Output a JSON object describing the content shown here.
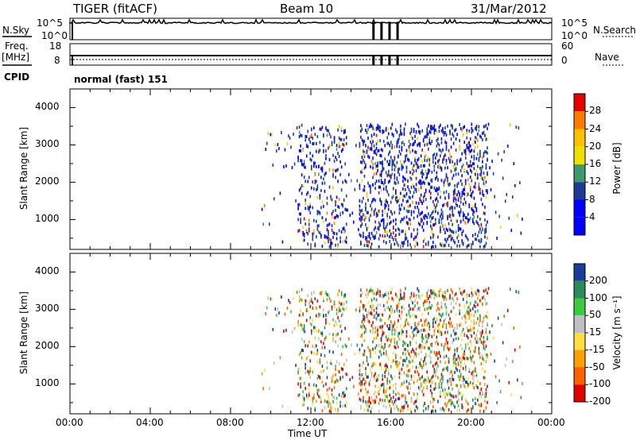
{
  "header": {
    "radar": "TIGER (fitACF)",
    "beam": "Beam 10",
    "date": "31/Mar/2012"
  },
  "top_panel": {
    "nsky_label": "N.Sky",
    "nsky_ticks": [
      "10^5",
      "10^0"
    ],
    "nsearch_label": "N.Search",
    "nsearch_ticks": [
      "10^5",
      "10^0"
    ],
    "freq_label": "Freq.",
    "freq_unit": "[MHz]",
    "freq_ticks": [
      "18",
      "8"
    ],
    "nave_label": "Nave",
    "nave_ticks": [
      "60",
      "0"
    ],
    "cpid_label": "CPID",
    "cpid_value": "normal (fast) 151"
  },
  "colorbars": {
    "power": {
      "label": "Power [dB]",
      "ticks": [
        "28",
        "24",
        "20",
        "16",
        "12",
        "8",
        "4"
      ],
      "colors": [
        "#e60000",
        "#ff7a00",
        "#ffc000",
        "#f0e000",
        "#3c9a6e",
        "#1e3c96",
        "#0000ff"
      ]
    },
    "velocity": {
      "label": "Velocity [m s⁻¹]",
      "ticks": [
        "200",
        "100",
        "50",
        "15",
        "-15",
        "-50",
        "-100",
        "-200"
      ],
      "colors": [
        "#1a3c9c",
        "#2d8a5a",
        "#40c840",
        "#c0c0c0",
        "#ffe040",
        "#ffa000",
        "#ff6000",
        "#e00000"
      ]
    }
  },
  "chart_data": [
    {
      "type": "heatmap",
      "panel": "power",
      "ylabel": "Slant Range [km]",
      "yticks": [
        "4000",
        "3000",
        "2000",
        "1000"
      ],
      "ylim": [
        200,
        4500
      ],
      "xlim": [
        "00:00",
        "24:00"
      ],
      "xticks": [
        "00:00",
        "04:00",
        "08:00",
        "12:00",
        "16:00",
        "20:00",
        "00:00"
      ],
      "xlabel": "Time UT",
      "dominant_values_dB": [
        4,
        8
      ]
    },
    {
      "type": "heatmap",
      "panel": "velocity",
      "ylabel": "Slant Range [km]",
      "yticks": [
        "4000",
        "3000",
        "2000",
        "1000"
      ],
      "ylim": [
        200,
        4500
      ],
      "xlim": [
        "00:00",
        "24:00"
      ],
      "xticks": [
        "00:00",
        "04:00",
        "08:00",
        "12:00",
        "16:00",
        "20:00",
        "00:00"
      ],
      "xlabel": "Time UT"
    }
  ]
}
